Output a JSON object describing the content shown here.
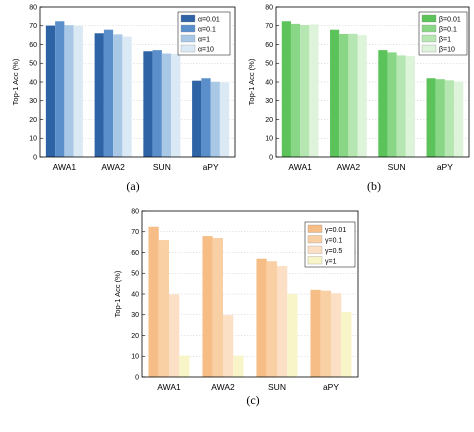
{
  "chart_data": [
    {
      "type": "bar",
      "panel_label": "(a)",
      "ylabel": "Top-1 Acc (%)",
      "ylim": [
        0,
        80
      ],
      "yticks": [
        0,
        10,
        20,
        30,
        40,
        50,
        60,
        70,
        80
      ],
      "grid": true,
      "legend_position": "top-right",
      "categories": [
        "AWA1",
        "AWA2",
        "SUN",
        "aPY"
      ],
      "series": [
        {
          "name": "α=0.01",
          "color": "#2e63a6",
          "values": [
            70.1,
            66.0,
            56.4,
            40.7
          ]
        },
        {
          "name": "α=0.1",
          "color": "#5b8fcb",
          "values": [
            72.4,
            67.9,
            57.0,
            42.0
          ]
        },
        {
          "name": "α=1",
          "color": "#a8c8e6",
          "values": [
            70.3,
            65.4,
            55.2,
            40.1
          ]
        },
        {
          "name": "α=10",
          "color": "#dbe9f5",
          "values": [
            70.0,
            64.2,
            55.0,
            39.8
          ]
        }
      ]
    },
    {
      "type": "bar",
      "panel_label": "(b)",
      "ylabel": "Top-1 Acc (%)",
      "ylim": [
        0,
        80
      ],
      "yticks": [
        0,
        10,
        20,
        30,
        40,
        50,
        60,
        70,
        80
      ],
      "grid": true,
      "legend_position": "top-right",
      "categories": [
        "AWA1",
        "AWA2",
        "SUN",
        "aPY"
      ],
      "series": [
        {
          "name": "β=0.01",
          "color": "#5cc35a",
          "values": [
            72.4,
            67.9,
            57.0,
            42.0
          ]
        },
        {
          "name": "β=0.1",
          "color": "#88d686",
          "values": [
            71.0,
            65.6,
            55.8,
            41.5
          ]
        },
        {
          "name": "β=1",
          "color": "#b6e6b2",
          "values": [
            70.4,
            65.7,
            54.2,
            40.9
          ]
        },
        {
          "name": "β=10",
          "color": "#ddf3da",
          "values": [
            70.7,
            65.0,
            53.9,
            40.2
          ]
        }
      ]
    },
    {
      "type": "bar",
      "panel_label": "(c)",
      "ylabel": "Top-1 Acc (%)",
      "ylim": [
        0,
        80
      ],
      "yticks": [
        0,
        10,
        20,
        30,
        40,
        50,
        60,
        70,
        80
      ],
      "grid": true,
      "legend_position": "top-right",
      "categories": [
        "AWA1",
        "AWA2",
        "SUN",
        "aPY"
      ],
      "series": [
        {
          "name": "γ=0.01",
          "color": "#f6bd86",
          "values": [
            72.4,
            67.9,
            57.0,
            42.0
          ]
        },
        {
          "name": "γ=0.1",
          "color": "#f9cfa4",
          "values": [
            66.0,
            67.0,
            55.8,
            41.6
          ]
        },
        {
          "name": "γ=0.5",
          "color": "#fbe0c5",
          "values": [
            39.8,
            29.8,
            53.5,
            40.4
          ]
        },
        {
          "name": "γ=1",
          "color": "#f8f5c8",
          "values": [
            10.3,
            10.3,
            40.0,
            31.3
          ]
        }
      ]
    }
  ]
}
